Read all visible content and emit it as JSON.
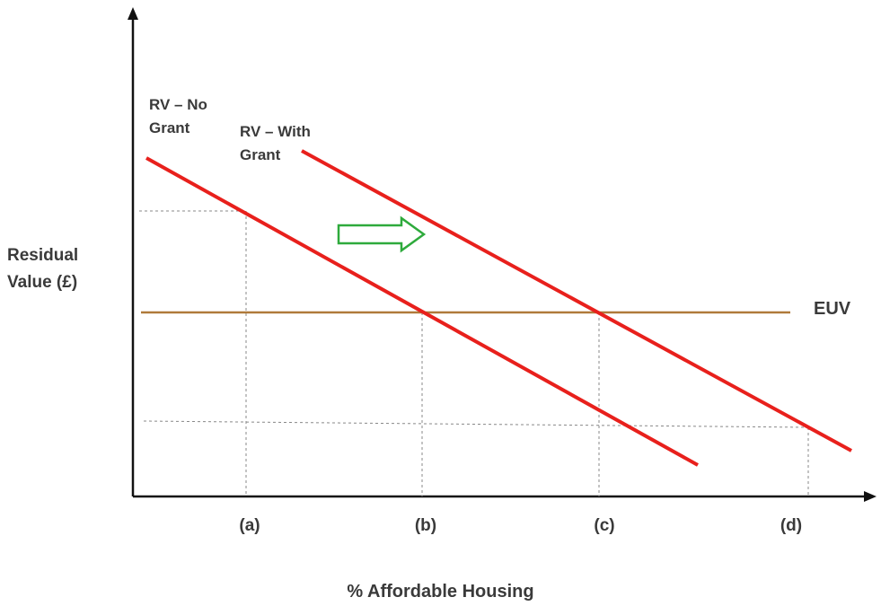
{
  "diagram": {
    "y_axis_label": "Residual\nValue (£)",
    "x_axis_label": "% Affordable Housing",
    "line_no_grant": {
      "label": "RV – No\nGrant",
      "color": "#e8201c"
    },
    "line_with_grant": {
      "label": "RV – With\nGrant",
      "color": "#e8201c"
    },
    "euv": {
      "label": "EUV",
      "color": "#b07a3a"
    },
    "arrow_color": "#2eaa3c",
    "ticks": [
      "(a)",
      "(b)",
      "(c)",
      "(d)"
    ]
  }
}
